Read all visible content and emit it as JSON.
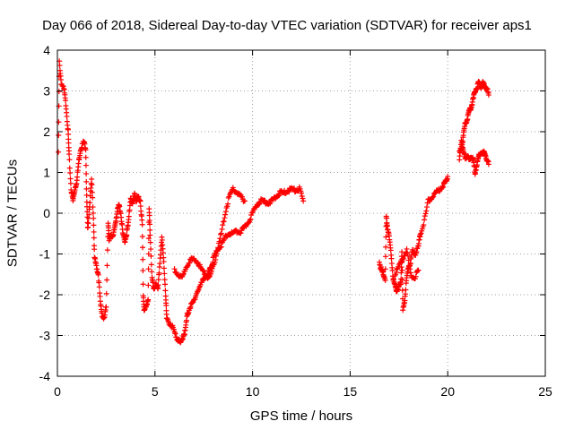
{
  "chart_data": {
    "type": "scatter",
    "title": "Day 066 of 2018, Sidereal Day-to-day VTEC variation (SDTVAR) for receiver aps1",
    "xlabel": "GPS time / hours",
    "ylabel": "SDTVAR / TECUs",
    "xlim": [
      0,
      25
    ],
    "ylim": [
      -4,
      4
    ],
    "xticks": [
      0,
      5,
      10,
      15,
      20,
      25
    ],
    "yticks": [
      -4,
      -3,
      -2,
      -1,
      0,
      1,
      2,
      3,
      4
    ],
    "xtick_labels": [
      "0",
      "5",
      "10",
      "15",
      "20",
      "25"
    ],
    "ytick_labels": [
      "-4",
      "-3",
      "-2",
      "-1",
      "0",
      "1",
      "2",
      "3",
      "4"
    ],
    "grid": true,
    "marker": "+",
    "color": "#ff0000",
    "segments": [
      [
        [
          0.05,
          1.5
        ],
        [
          0.1,
          3.7
        ],
        [
          0.2,
          3.2
        ],
        [
          0.35,
          3.0
        ],
        [
          0.45,
          2.6
        ],
        [
          0.55,
          2.0
        ],
        [
          0.6,
          1.4
        ],
        [
          0.7,
          0.6
        ],
        [
          0.8,
          0.3
        ],
        [
          0.9,
          0.6
        ],
        [
          1.0,
          0.8
        ],
        [
          1.1,
          1.3
        ],
        [
          1.2,
          1.6
        ],
        [
          1.35,
          1.75
        ],
        [
          1.45,
          1.6
        ],
        [
          1.5,
          0.4
        ],
        [
          1.55,
          -0.4
        ],
        [
          1.65,
          0.2
        ],
        [
          1.75,
          0.8
        ],
        [
          1.85,
          -0.1
        ],
        [
          1.9,
          -1.1
        ],
        [
          2.0,
          -1.3
        ],
        [
          2.1,
          -1.5
        ],
        [
          2.2,
          -2.2
        ],
        [
          2.3,
          -2.5
        ],
        [
          2.4,
          -2.6
        ],
        [
          2.5,
          -2.3
        ],
        [
          2.6,
          -0.2
        ],
        [
          2.65,
          -0.7
        ],
        [
          2.75,
          -0.5
        ],
        [
          2.85,
          -0.6
        ],
        [
          2.95,
          -0.3
        ],
        [
          3.05,
          0.0
        ],
        [
          3.15,
          0.2
        ],
        [
          3.25,
          0.0
        ],
        [
          3.35,
          -0.5
        ],
        [
          3.45,
          -0.7
        ],
        [
          3.55,
          -0.5
        ],
        [
          3.65,
          -0.2
        ],
        [
          3.75,
          0.4
        ],
        [
          3.85,
          0.2
        ],
        [
          3.95,
          0.5
        ],
        [
          4.05,
          0.3
        ],
        [
          4.15,
          0.4
        ],
        [
          4.25,
          0.3
        ],
        [
          4.35,
          -0.3
        ],
        [
          4.4,
          -2.0
        ],
        [
          4.45,
          -2.4
        ],
        [
          4.55,
          -2.3
        ],
        [
          4.65,
          -2.1
        ],
        [
          4.7,
          0.1
        ],
        [
          4.75,
          -0.5
        ],
        [
          4.85,
          -1.6
        ],
        [
          4.95,
          -1.9
        ],
        [
          5.05,
          -1.7
        ],
        [
          5.15,
          -1.9
        ],
        [
          5.25,
          -1.2
        ],
        [
          5.35,
          -0.6
        ],
        [
          5.45,
          -1.2
        ],
        [
          5.55,
          -2.0
        ],
        [
          5.6,
          -2.6
        ],
        [
          5.75,
          -2.7
        ],
        [
          5.9,
          -2.8
        ],
        [
          6.05,
          -3.0
        ],
        [
          6.2,
          -3.1
        ],
        [
          6.3,
          -3.2
        ],
        [
          6.45,
          -3.0
        ],
        [
          6.55,
          -2.9
        ],
        [
          6.65,
          -2.5
        ],
        [
          6.8,
          -2.3
        ],
        [
          6.95,
          -2.2
        ],
        [
          7.1,
          -2.0
        ],
        [
          7.3,
          -1.8
        ],
        [
          7.5,
          -1.6
        ],
        [
          7.7,
          -1.5
        ],
        [
          7.8,
          -1.4
        ],
        [
          7.9,
          -1.3
        ],
        [
          8.0,
          -1.1
        ],
        [
          8.2,
          -0.9
        ],
        [
          8.4,
          -0.8
        ],
        [
          8.6,
          -0.6
        ],
        [
          8.8,
          -0.5
        ],
        [
          9.0,
          -0.5
        ],
        [
          9.2,
          -0.45
        ],
        [
          9.4,
          -0.45
        ],
        [
          9.6,
          -0.35
        ],
        [
          9.8,
          -0.2
        ],
        [
          10.0,
          0.0
        ],
        [
          10.2,
          0.2
        ],
        [
          10.4,
          0.3
        ],
        [
          10.6,
          0.3
        ],
        [
          10.8,
          0.25
        ],
        [
          11.0,
          0.3
        ],
        [
          11.2,
          0.4
        ],
        [
          11.4,
          0.5
        ],
        [
          11.6,
          0.5
        ],
        [
          11.8,
          0.55
        ],
        [
          12.0,
          0.6
        ],
        [
          12.2,
          0.55
        ],
        [
          12.4,
          0.6
        ],
        [
          12.6,
          0.3
        ]
      ],
      [
        [
          6.0,
          -1.4
        ],
        [
          6.2,
          -1.5
        ],
        [
          6.4,
          -1.6
        ],
        [
          6.6,
          -1.3
        ],
        [
          6.8,
          -1.15
        ],
        [
          7.0,
          -1.15
        ],
        [
          7.2,
          -1.2
        ],
        [
          7.4,
          -1.4
        ],
        [
          7.6,
          -1.5
        ],
        [
          7.8,
          -1.6
        ],
        [
          8.0,
          -1.3
        ],
        [
          8.2,
          -0.9
        ],
        [
          8.4,
          -0.5
        ],
        [
          8.6,
          0.0
        ],
        [
          8.8,
          0.4
        ],
        [
          9.0,
          0.6
        ],
        [
          9.2,
          0.5
        ],
        [
          9.4,
          0.4
        ],
        [
          9.6,
          0.3
        ]
      ],
      [
        [
          16.5,
          -1.2
        ],
        [
          16.6,
          -1.4
        ],
        [
          16.7,
          -1.5
        ],
        [
          16.8,
          -1.6
        ],
        [
          16.85,
          -0.1
        ],
        [
          16.9,
          -0.3
        ],
        [
          17.0,
          -0.6
        ],
        [
          17.1,
          -1.0
        ],
        [
          17.2,
          -1.6
        ],
        [
          17.3,
          -1.8
        ],
        [
          17.4,
          -1.9
        ],
        [
          17.5,
          -1.8
        ],
        [
          17.6,
          -1.7
        ],
        [
          17.65,
          -0.9
        ],
        [
          17.7,
          -2.4
        ],
        [
          17.8,
          -2.1
        ],
        [
          17.9,
          -1.6
        ],
        [
          18.0,
          -1.3
        ],
        [
          18.1,
          -1.2
        ],
        [
          18.2,
          -0.9
        ],
        [
          18.35,
          -1.0
        ],
        [
          18.5,
          -0.8
        ],
        [
          18.6,
          -0.5
        ],
        [
          18.8,
          -0.2
        ],
        [
          19.0,
          0.3
        ],
        [
          19.2,
          0.4
        ],
        [
          19.4,
          0.5
        ],
        [
          19.6,
          0.6
        ],
        [
          19.8,
          0.7
        ],
        [
          19.9,
          0.8
        ],
        [
          20.0,
          0.9
        ]
      ],
      [
        [
          17.3,
          -1.5
        ],
        [
          17.5,
          -1.3
        ],
        [
          17.7,
          -1.1
        ],
        [
          17.9,
          -0.9
        ],
        [
          18.1,
          -1.5
        ],
        [
          18.3,
          -1.6
        ],
        [
          18.5,
          -1.4
        ]
      ],
      [
        [
          20.6,
          1.5
        ],
        [
          20.7,
          1.6
        ],
        [
          20.8,
          1.9
        ],
        [
          20.9,
          2.2
        ],
        [
          21.0,
          2.3
        ],
        [
          21.1,
          2.5
        ],
        [
          21.2,
          2.6
        ],
        [
          21.3,
          2.8
        ],
        [
          21.4,
          3.0
        ],
        [
          21.5,
          3.1
        ],
        [
          21.6,
          3.2
        ],
        [
          21.7,
          3.1
        ],
        [
          21.8,
          3.2
        ],
        [
          21.9,
          3.1
        ],
        [
          22.0,
          3.1
        ],
        [
          22.1,
          2.9
        ]
      ],
      [
        [
          20.6,
          1.3
        ],
        [
          20.7,
          1.8
        ],
        [
          20.8,
          1.5
        ],
        [
          20.9,
          1.35
        ],
        [
          21.0,
          1.4
        ],
        [
          21.1,
          1.3
        ],
        [
          21.2,
          1.4
        ],
        [
          21.3,
          1.3
        ],
        [
          21.4,
          1.0
        ],
        [
          21.5,
          1.2
        ],
        [
          21.6,
          1.4
        ],
        [
          21.7,
          1.5
        ],
        [
          21.8,
          1.45
        ],
        [
          21.9,
          1.5
        ],
        [
          22.0,
          1.3
        ],
        [
          22.1,
          1.2
        ]
      ]
    ]
  }
}
